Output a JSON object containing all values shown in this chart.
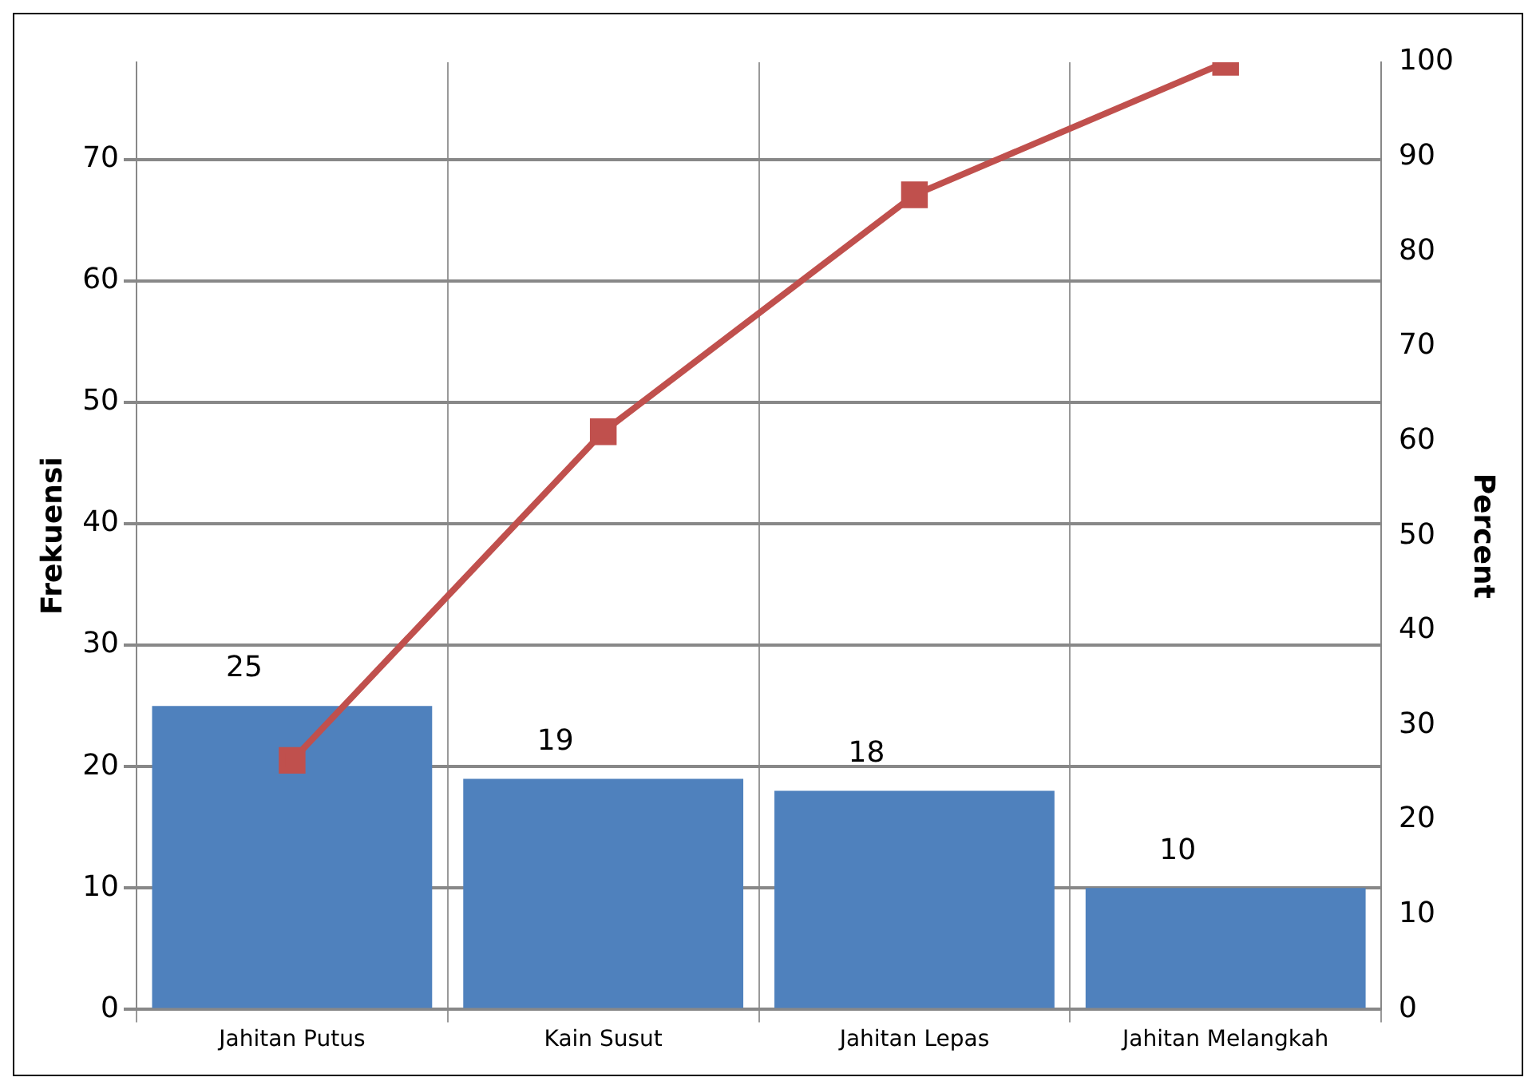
{
  "chart_data": {
    "type": "bar",
    "categories": [
      "Jahitan Putus",
      "Kain Susut",
      "Jahitan Lepas",
      "Jahitan Melangkah"
    ],
    "series": [
      {
        "color": "#4f81bd",
        "values": [
          25,
          19,
          18,
          10
        ],
        "value_labels": [
          "25",
          "19",
          "18",
          "10"
        ]
      },
      {
        "type": "line",
        "axis": "y2",
        "color": "#c0504d",
        "values": [
          26.3,
          61,
          86,
          100
        ],
        "marker": "square"
      }
    ],
    "ylabel": "Frekuensi",
    "y2label": "Percent",
    "ylim": [
      0,
      78
    ],
    "yticks": [
      0,
      10,
      20,
      30,
      40,
      50,
      60,
      70
    ],
    "y2lim": [
      0,
      100
    ],
    "y2ticks": [
      0,
      10,
      20,
      30,
      40,
      50,
      60,
      70,
      80,
      90,
      100
    ],
    "grid": true,
    "legend": false
  }
}
